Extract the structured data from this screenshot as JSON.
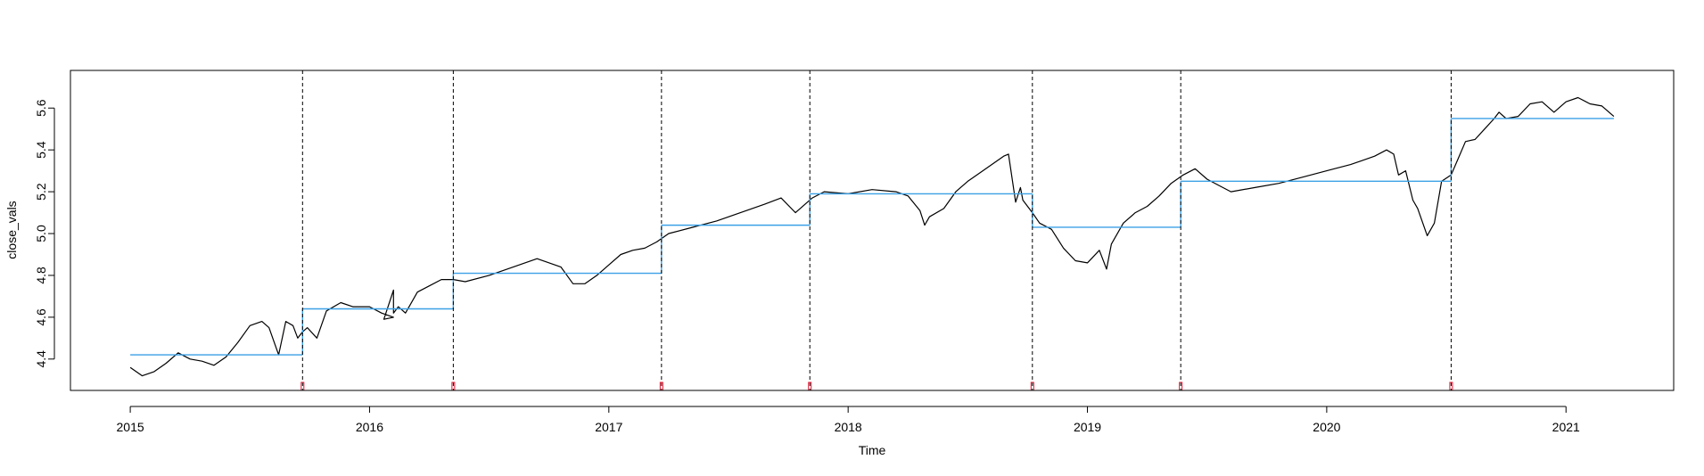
{
  "chart_data": {
    "type": "line",
    "title": "",
    "xlabel": "Time",
    "ylabel": "close_vals",
    "xlim": [
      2014.75,
      2021.45
    ],
    "ylim": [
      4.25,
      5.78
    ],
    "x_ticks": [
      2015,
      2016,
      2017,
      2018,
      2019,
      2020,
      2021
    ],
    "y_ticks": [
      4.4,
      4.6,
      4.8,
      5.0,
      5.2,
      5.4,
      5.6
    ],
    "grid": false,
    "colors": {
      "series": "#000000",
      "segment_means": "#3ba0e6",
      "breakpoint_lines": "#000000",
      "breakpoint_markers": "#e0142e"
    },
    "series": [
      {
        "x": [
          2015.0,
          2015.05,
          2015.1,
          2015.15,
          2015.2,
          2015.25,
          2015.3,
          2015.35,
          2015.4,
          2015.45,
          2015.5,
          2015.55,
          2015.58,
          2015.62,
          2015.65,
          2015.68,
          2015.7,
          2015.72,
          2015.74,
          2015.78,
          2015.82,
          2015.88,
          2015.93,
          2016.0,
          2016.05,
          2016.1,
          2016.06,
          2016.1,
          2016.1,
          2016.12,
          2016.15,
          2016.17,
          2016.18,
          2016.2,
          2016.25,
          2016.3,
          2016.35,
          2016.4,
          2016.5,
          2016.6,
          2016.7,
          2016.8,
          2016.85,
          2016.9,
          2016.95,
          2017.0,
          2017.05,
          2017.1,
          2017.15,
          2017.2,
          2017.25,
          2017.35,
          2017.45,
          2017.55,
          2017.65,
          2017.72,
          2017.78,
          2017.83,
          2017.85,
          2017.9,
          2018.0,
          2018.1,
          2018.2,
          2018.25,
          2018.3,
          2018.32,
          2018.34,
          2018.4,
          2018.45,
          2018.5,
          2018.55,
          2018.6,
          2018.65,
          2018.67,
          2018.7,
          2018.72,
          2018.73,
          2018.77,
          2018.8,
          2018.85,
          2018.9,
          2018.95,
          2019.0,
          2019.05,
          2019.08,
          2019.1,
          2019.15,
          2019.2,
          2019.25,
          2019.3,
          2019.35,
          2019.4,
          2019.45,
          2019.5,
          2019.55,
          2019.6,
          2019.7,
          2019.8,
          2019.9,
          2020.0,
          2020.1,
          2020.2,
          2020.25,
          2020.28,
          2020.3,
          2020.33,
          2020.36,
          2020.38,
          2020.42,
          2020.45,
          2020.48,
          2020.52,
          2020.55,
          2020.58,
          2020.62,
          2020.66,
          2020.7,
          2020.72,
          2020.75,
          2020.8,
          2020.85,
          2020.9,
          2020.95,
          2021.0,
          2021.05,
          2021.1,
          2021.15,
          2021.2
        ],
        "y": [
          4.36,
          4.32,
          4.34,
          4.38,
          4.43,
          4.4,
          4.39,
          4.37,
          4.41,
          4.48,
          4.56,
          4.58,
          4.55,
          4.42,
          4.58,
          4.56,
          4.5,
          4.53,
          4.55,
          4.5,
          4.63,
          4.67,
          4.65,
          4.65,
          4.62,
          4.6,
          4.59,
          4.73,
          4.62,
          4.65,
          4.62,
          4.66,
          4.68,
          4.72,
          4.75,
          4.78,
          4.78,
          4.77,
          4.8,
          4.84,
          4.88,
          4.84,
          4.76,
          4.76,
          4.8,
          4.85,
          4.9,
          4.92,
          4.93,
          4.96,
          5.0,
          5.03,
          5.06,
          5.1,
          5.14,
          5.17,
          5.1,
          5.15,
          5.17,
          5.2,
          5.19,
          5.21,
          5.2,
          5.18,
          5.11,
          5.04,
          5.08,
          5.12,
          5.2,
          5.25,
          5.29,
          5.33,
          5.37,
          5.38,
          5.15,
          5.22,
          5.16,
          5.1,
          5.05,
          5.02,
          4.93,
          4.87,
          4.86,
          4.92,
          4.83,
          4.95,
          5.05,
          5.1,
          5.13,
          5.18,
          5.24,
          5.28,
          5.31,
          5.26,
          5.23,
          5.2,
          5.22,
          5.24,
          5.27,
          5.3,
          5.33,
          5.37,
          5.4,
          5.38,
          5.28,
          5.3,
          5.16,
          5.12,
          4.99,
          5.05,
          5.25,
          5.28,
          5.36,
          5.44,
          5.45,
          5.5,
          5.55,
          5.58,
          5.55,
          5.56,
          5.62,
          5.63,
          5.58,
          5.63,
          5.65,
          5.62,
          5.61,
          5.56
        ]
      }
    ],
    "segment_means": [
      {
        "x0": 2015.0,
        "x1": 2015.72,
        "y": 4.42
      },
      {
        "x0": 2015.72,
        "x1": 2016.35,
        "y": 4.64
      },
      {
        "x0": 2016.35,
        "x1": 2017.22,
        "y": 4.81
      },
      {
        "x0": 2017.22,
        "x1": 2017.84,
        "y": 5.04
      },
      {
        "x0": 2017.84,
        "x1": 2018.77,
        "y": 5.19
      },
      {
        "x0": 2018.77,
        "x1": 2019.39,
        "y": 5.03
      },
      {
        "x0": 2019.39,
        "x1": 2020.52,
        "y": 5.25
      },
      {
        "x0": 2020.52,
        "x1": 2021.2,
        "y": 5.55
      }
    ],
    "breakpoints": [
      2015.72,
      2016.35,
      2017.22,
      2017.84,
      2018.77,
      2019.39,
      2020.52
    ]
  }
}
